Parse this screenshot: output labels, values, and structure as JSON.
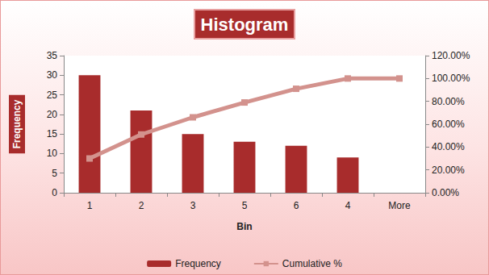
{
  "chart_data": {
    "type": "bar",
    "title": "Histogram",
    "x_label": "Bin",
    "y_label": "Frequency",
    "categories": [
      "1",
      "2",
      "3",
      "5",
      "6",
      "4",
      "More"
    ],
    "series": [
      {
        "name": "Frequency",
        "type": "bar",
        "color": "#a82c2c",
        "values": [
          30,
          21,
          15,
          13,
          12,
          9,
          0
        ]
      },
      {
        "name": "Cumulative %",
        "type": "line",
        "axis": "y2",
        "color": "#d3928d",
        "marker": "square",
        "values": [
          30,
          51,
          66,
          79,
          91,
          100,
          100
        ]
      }
    ],
    "ylim": [
      0,
      35
    ],
    "yticks": [
      0,
      5,
      10,
      15,
      20,
      25,
      30,
      35
    ],
    "y2lim": [
      0,
      120
    ],
    "y2ticks": [
      {
        "value": 0,
        "label": "0.00%"
      },
      {
        "value": 20,
        "label": "20.00%"
      },
      {
        "value": 40,
        "label": "40.00%"
      },
      {
        "value": 60,
        "label": "60.00%"
      },
      {
        "value": 80,
        "label": "80.00%"
      },
      {
        "value": 100,
        "label": "100.00%"
      },
      {
        "value": 120,
        "label": "120.00%"
      }
    ],
    "grid": false,
    "legend": "bottom"
  }
}
